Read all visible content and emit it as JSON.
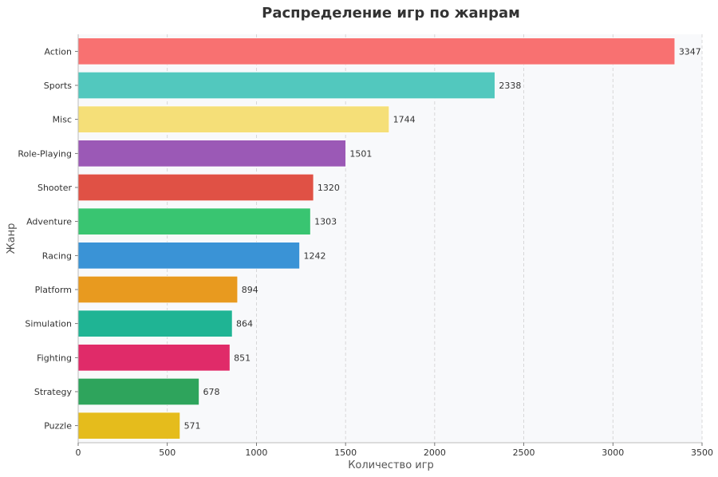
{
  "chart_data": {
    "type": "bar",
    "orientation": "horizontal",
    "title": "Распределение игр по жанрам",
    "xlabel": "Количество игр",
    "ylabel": "Жанр",
    "xlim": [
      0,
      3500
    ],
    "xticks": [
      0,
      500,
      1000,
      1500,
      2000,
      2500,
      3000,
      3500
    ],
    "grid": "x-dashed",
    "categories": [
      "Action",
      "Sports",
      "Misc",
      "Role-Playing",
      "Shooter",
      "Adventure",
      "Racing",
      "Platform",
      "Simulation",
      "Fighting",
      "Strategy",
      "Puzzle"
    ],
    "values": [
      3347,
      2338,
      1744,
      1501,
      1320,
      1303,
      1242,
      894,
      864,
      851,
      678,
      571
    ],
    "colors": [
      "#F87171",
      "#52C8BE",
      "#F5DF78",
      "#9B59B6",
      "#E05145",
      "#39C571",
      "#3A93D6",
      "#E89A1F",
      "#1FB494",
      "#E02B69",
      "#2EA45C",
      "#E5BC1C"
    ],
    "plot_background": "#F8F9FB"
  }
}
